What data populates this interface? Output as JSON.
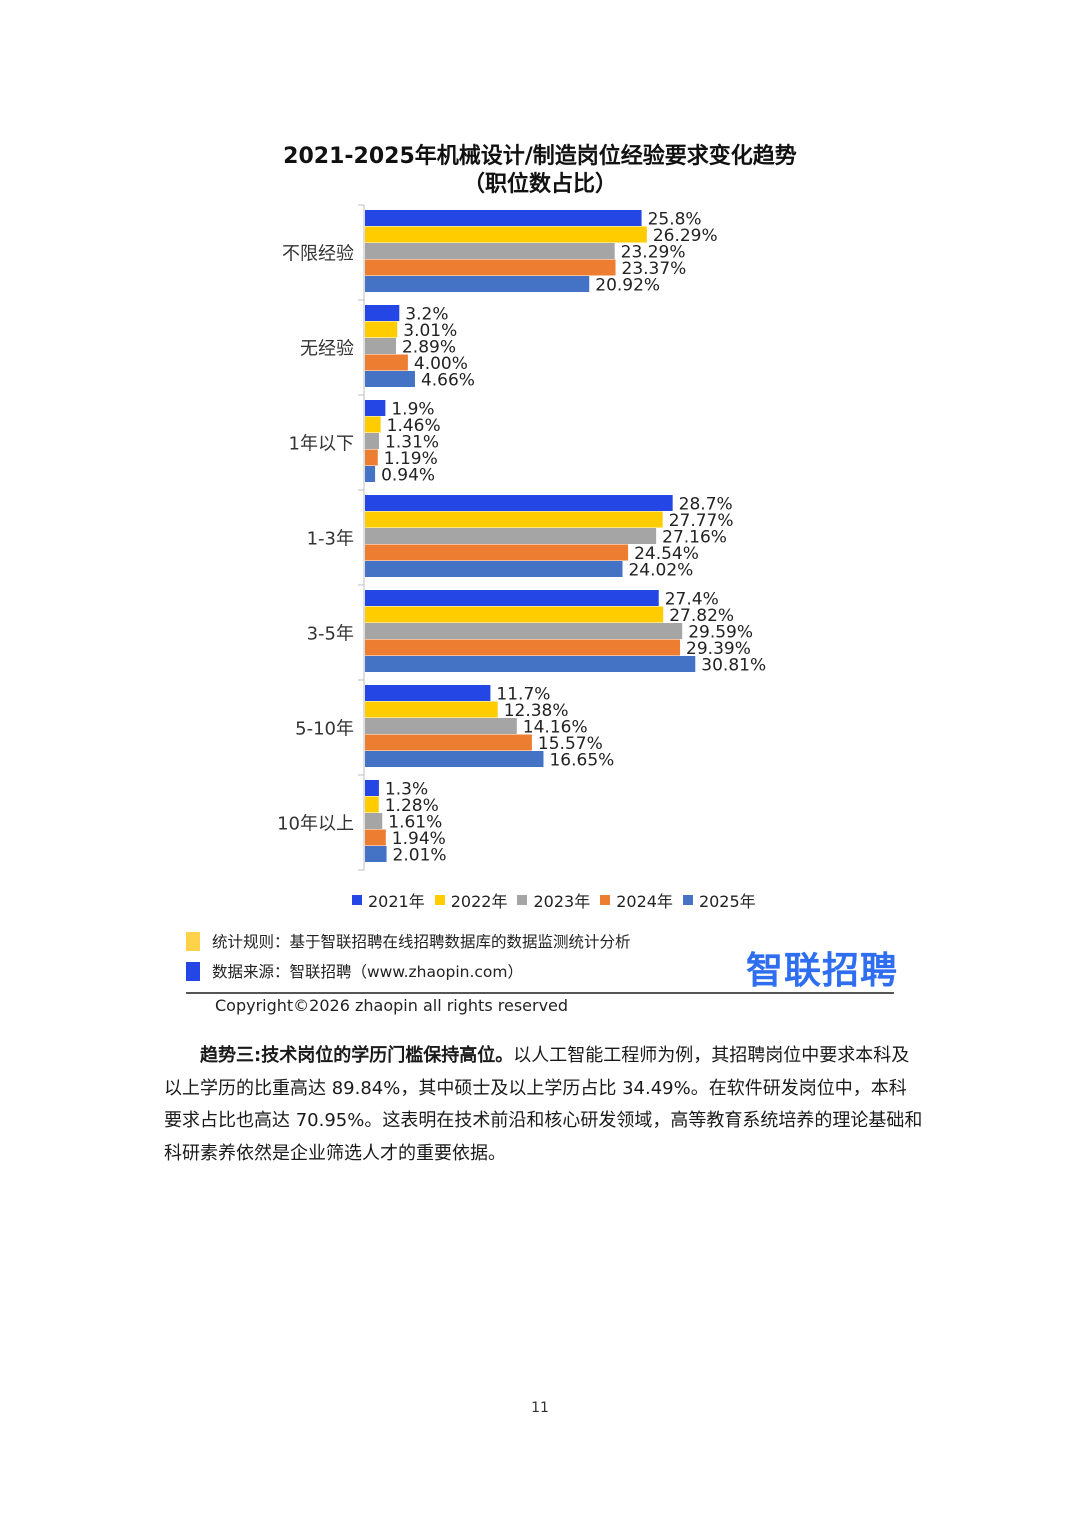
{
  "chart_data": {
    "type": "bar",
    "orientation": "horizontal",
    "title": "2021-2025年机械设计/制造岗位经验要求变化趋势",
    "subtitle": "（职位数占比）",
    "categories": [
      "不限经验",
      "无经验",
      "1年以下",
      "1-3年",
      "3-5年",
      "5-10年",
      "10年以上"
    ],
    "series": [
      {
        "name": "2021年",
        "color": "#2446e4",
        "values": [
          25.8,
          3.2,
          1.9,
          28.7,
          27.4,
          11.7,
          1.3
        ],
        "labels": [
          "25.8%",
          "3.2%",
          "1.9%",
          "28.7%",
          "27.4%",
          "11.7%",
          "1.3%"
        ]
      },
      {
        "name": "2022年",
        "color": "#ffcc00",
        "values": [
          26.29,
          3.01,
          1.46,
          27.77,
          27.82,
          12.38,
          1.28
        ],
        "labels": [
          "26.29%",
          "3.01%",
          "1.46%",
          "27.77%",
          "27.82%",
          "12.38%",
          "1.28%"
        ]
      },
      {
        "name": "2023年",
        "color": "#a5a5a5",
        "values": [
          23.29,
          2.89,
          1.31,
          27.16,
          29.59,
          14.16,
          1.61
        ],
        "labels": [
          "23.29%",
          "2.89%",
          "1.31%",
          "27.16%",
          "29.59%",
          "14.16%",
          "1.61%"
        ]
      },
      {
        "name": "2024年",
        "color": "#ed7d31",
        "values": [
          23.37,
          4.0,
          1.19,
          24.54,
          29.39,
          15.57,
          1.94
        ],
        "labels": [
          "23.37%",
          "4.00%",
          "1.19%",
          "24.54%",
          "29.39%",
          "15.57%",
          "1.94%"
        ]
      },
      {
        "name": "2025年",
        "color": "#4472c4",
        "values": [
          20.92,
          4.66,
          0.94,
          24.02,
          30.81,
          16.65,
          2.01
        ],
        "labels": [
          "20.92%",
          "4.66%",
          "0.94%",
          "24.02%",
          "30.81%",
          "16.65%",
          "2.01%"
        ]
      }
    ],
    "legend_position": "bottom",
    "grid": false
  },
  "notes": {
    "rule": "统计规则：基于智联招聘在线招聘数据库的数据监测统计分析",
    "source": "数据来源：智联招聘（www.zhaopin.com）",
    "rule_color": "#ffd24a",
    "source_color": "#2446e4"
  },
  "logo": {
    "text": "智联招聘",
    "color": "#2f6ef0"
  },
  "copyright": "Copyright©2026 zhaopin all rights reserved",
  "paragraph": {
    "heading": "趋势三:技术岗位的学历门槛保持高位。",
    "body": "以人工智能工程师为例，其招聘岗位中要求本科及以上学历的比重高达 89.84%，其中硕士及以上学历占比 34.49%。在软件研发岗位中，本科要求占比也高达 70.95%。这表明在技术前沿和核心研发领域，高等教育系统培养的理论基础和科研素养依然是企业筛选人才的重要依据。"
  },
  "page_number": "11"
}
